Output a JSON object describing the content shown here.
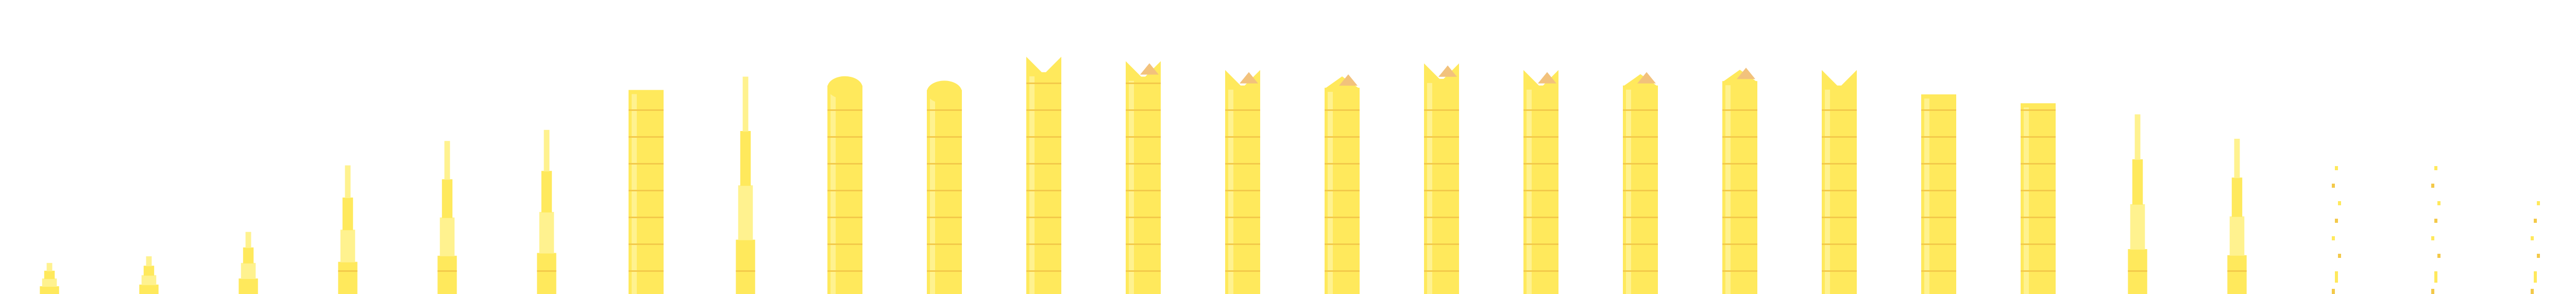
{
  "sheet": {
    "frame_count": 26,
    "colors": {
      "background": "#ffffff",
      "body": "#ffe95c",
      "body_light": "#fff28f",
      "seam": "#f3c94a",
      "crest": "#f2c27c"
    },
    "frames": [
      {
        "index": 0,
        "level": 0.14,
        "shape": "spire",
        "crest": false
      },
      {
        "index": 1,
        "level": 0.17,
        "shape": "spire",
        "crest": false
      },
      {
        "index": 2,
        "level": 0.28,
        "shape": "spire",
        "crest": false
      },
      {
        "index": 3,
        "level": 0.58,
        "shape": "spire",
        "crest": false
      },
      {
        "index": 4,
        "level": 0.69,
        "shape": "spire",
        "crest": false
      },
      {
        "index": 5,
        "level": 0.74,
        "shape": "spire",
        "crest": false
      },
      {
        "index": 6,
        "level": 0.92,
        "shape": "block",
        "crest": false
      },
      {
        "index": 7,
        "level": 0.98,
        "shape": "spire",
        "crest": false
      },
      {
        "index": 8,
        "level": 0.94,
        "shape": "dome",
        "crest": false
      },
      {
        "index": 9,
        "level": 0.92,
        "shape": "dome",
        "crest": false
      },
      {
        "index": 10,
        "level": 1.0,
        "shape": "notch",
        "crest": false
      },
      {
        "index": 11,
        "level": 0.98,
        "shape": "notch",
        "crest": true
      },
      {
        "index": 12,
        "level": 0.94,
        "shape": "notch",
        "crest": true
      },
      {
        "index": 13,
        "level": 0.93,
        "shape": "peak",
        "crest": true
      },
      {
        "index": 14,
        "level": 0.97,
        "shape": "notch",
        "crest": true
      },
      {
        "index": 15,
        "level": 0.94,
        "shape": "notch",
        "crest": true
      },
      {
        "index": 16,
        "level": 0.94,
        "shape": "peak",
        "crest": true
      },
      {
        "index": 17,
        "level": 0.96,
        "shape": "peak",
        "crest": true
      },
      {
        "index": 18,
        "level": 0.94,
        "shape": "notch",
        "crest": false
      },
      {
        "index": 19,
        "level": 0.9,
        "shape": "block",
        "crest": false
      },
      {
        "index": 20,
        "level": 0.86,
        "shape": "block",
        "crest": false
      },
      {
        "index": 21,
        "level": 0.81,
        "shape": "spire",
        "crest": false
      },
      {
        "index": 22,
        "level": 0.7,
        "shape": "spire",
        "crest": false
      },
      {
        "index": 23,
        "level": 0.63,
        "shape": "dots",
        "crest": false
      },
      {
        "index": 24,
        "level": 0.61,
        "shape": "dots",
        "crest": false
      },
      {
        "index": 25,
        "level": 0.46,
        "shape": "dots",
        "crest": false
      }
    ]
  }
}
